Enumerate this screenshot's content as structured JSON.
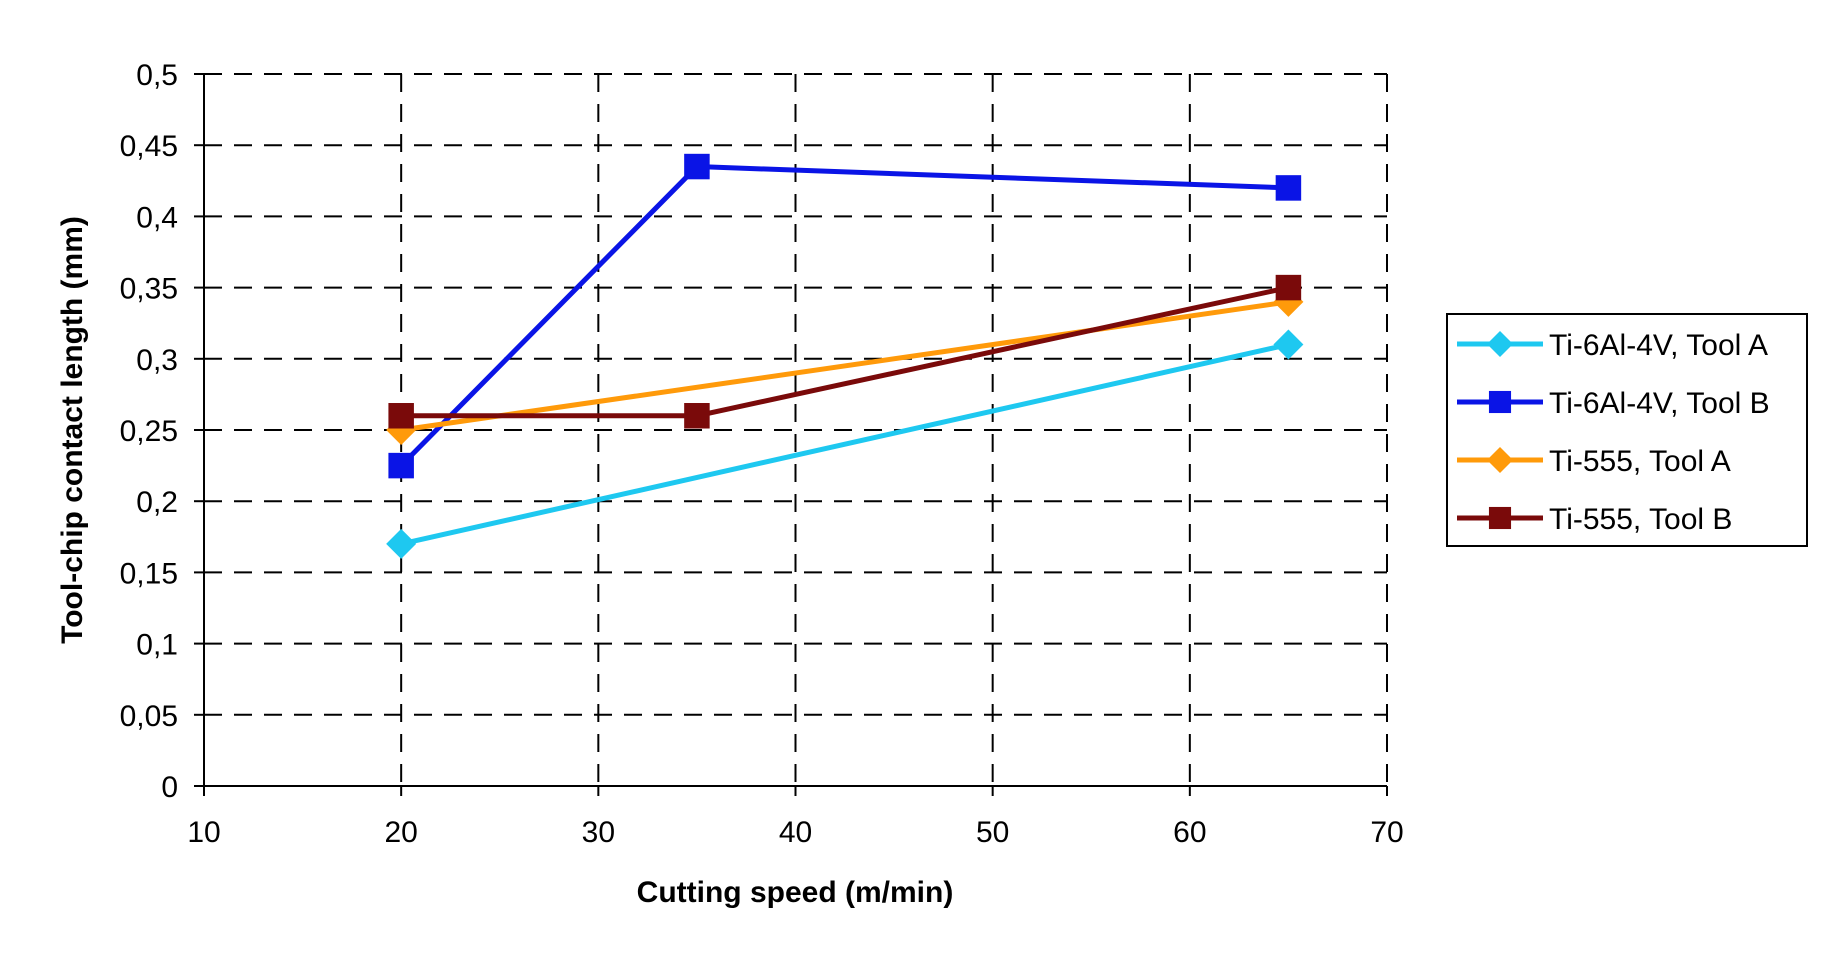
{
  "chart_data": {
    "type": "line",
    "title": "",
    "xlabel": "Cutting speed (m/min)",
    "ylabel": "Tool-chip contact length (mm)",
    "xlim": [
      10,
      70
    ],
    "ylim": [
      0,
      0.5
    ],
    "x_ticks": [
      10,
      20,
      30,
      40,
      50,
      60,
      70
    ],
    "x_tick_labels": [
      "10",
      "20",
      "30",
      "40",
      "50",
      "60",
      "70"
    ],
    "y_ticks": [
      0,
      0.05,
      0.1,
      0.15,
      0.2,
      0.25,
      0.3,
      0.35,
      0.4,
      0.45,
      0.5
    ],
    "y_tick_labels": [
      "0",
      "0,05",
      "0,1",
      "0,15",
      "0,2",
      "0,25",
      "0,3",
      "0,35",
      "0,4",
      "0,45",
      "0,5"
    ],
    "grid": true,
    "legend_position": "right",
    "series": [
      {
        "name": "Ti-6Al-4V, Tool A",
        "x": [
          20,
          65
        ],
        "values": [
          0.17,
          0.31
        ],
        "color": "#1EC8F0",
        "marker": "diamond"
      },
      {
        "name": "Ti-6Al-4V, Tool B",
        "x": [
          20,
          35,
          65
        ],
        "values": [
          0.225,
          0.435,
          0.42
        ],
        "color": "#0A14E6",
        "marker": "square"
      },
      {
        "name": "Ti-555, Tool A",
        "x": [
          20,
          65
        ],
        "values": [
          0.25,
          0.34
        ],
        "color": "#FF9A0A",
        "marker": "diamond"
      },
      {
        "name": "Ti-555, Tool B",
        "x": [
          20,
          35,
          65
        ],
        "values": [
          0.26,
          0.26,
          0.35
        ],
        "color": "#7A0A0A",
        "marker": "square"
      }
    ]
  }
}
